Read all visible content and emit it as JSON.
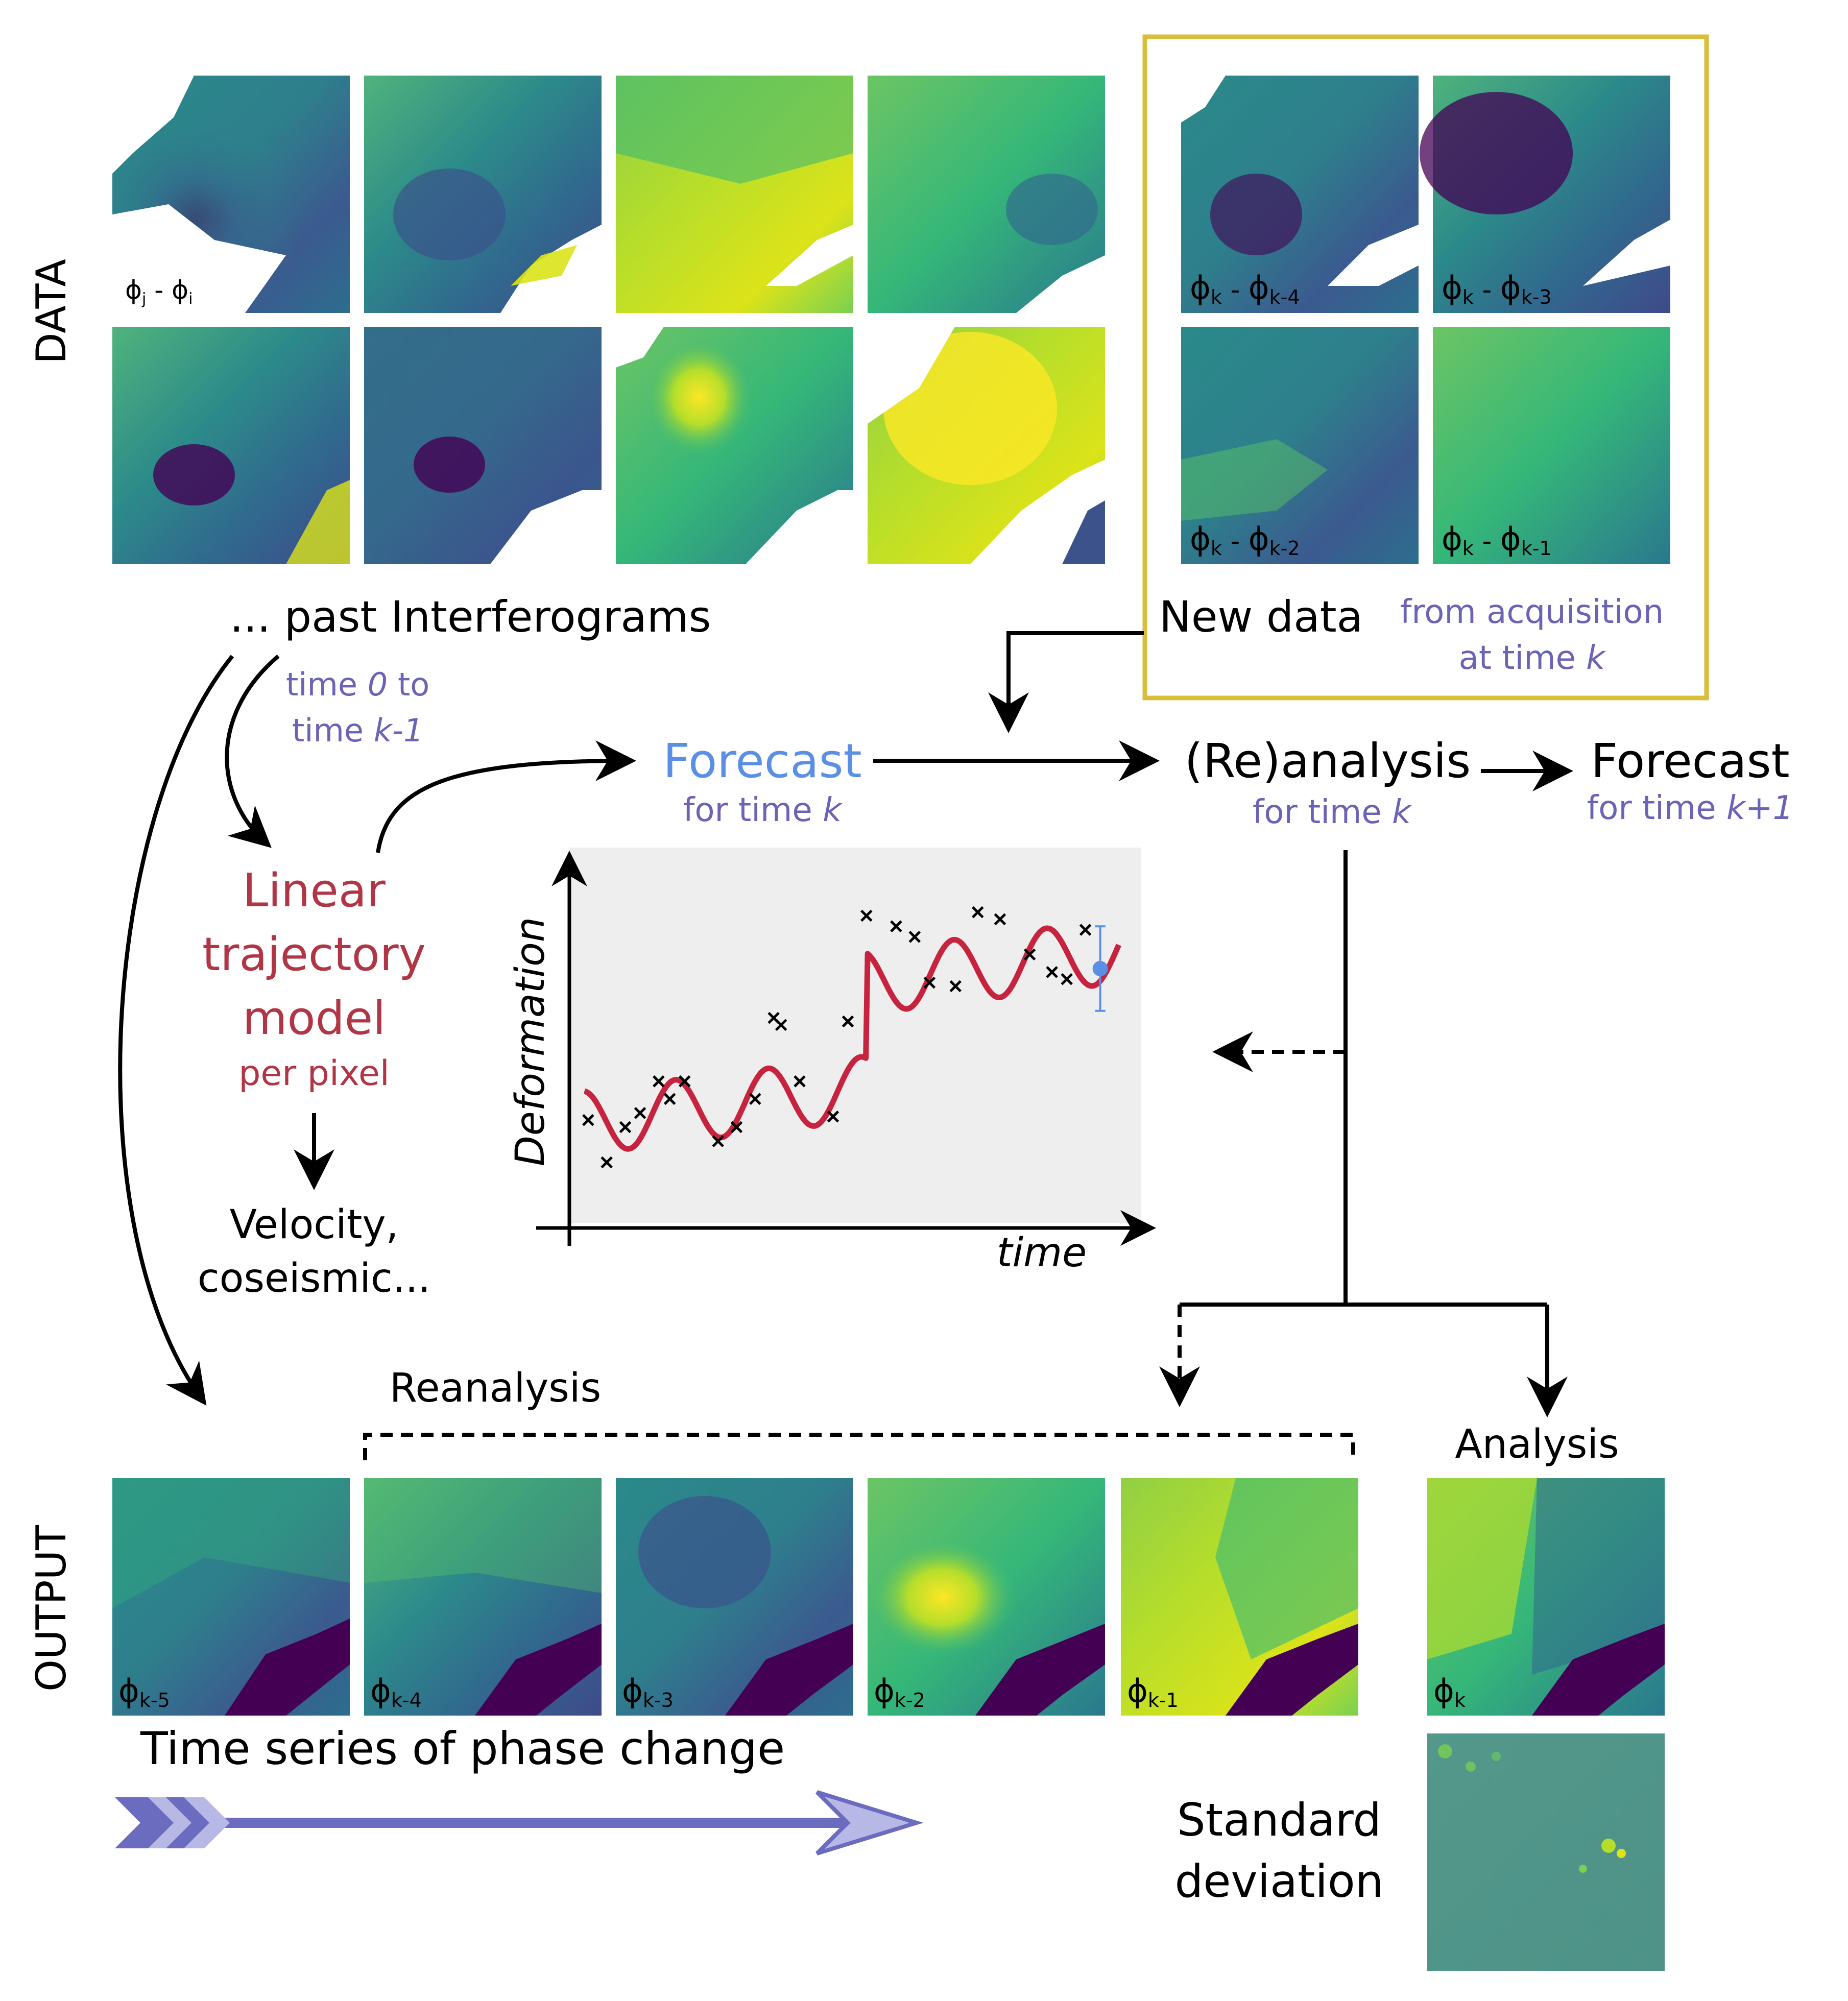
{
  "colors": {
    "forecast_blue": "#5b8fe6",
    "model_red": "#b03646",
    "annotation_purple": "#6b63b5",
    "box_gold": "#d9bd3c",
    "curve_red": "#c7233f",
    "plot_bg": "#eeeeee",
    "arrow_purple": "#6b6bc0",
    "arrow_purple_light": "#b8b8e6"
  },
  "labels": {
    "data": "DATA",
    "output": "OUTPUT",
    "past_interferograms": "... past Interferograms",
    "time_range_l1_a": "time ",
    "time_range_l1_b": "0",
    "time_range_l1_c": " to",
    "time_range_l2_a": "time ",
    "time_range_l2_b": "k-1",
    "new_data": "New data",
    "from_acq_l1": "from acquisition",
    "from_acq_l2_a": "at time ",
    "from_acq_l2_b": "k",
    "forecast": "Forecast",
    "forecast_sub_a": "for time ",
    "forecast_sub_b": "k",
    "reanalysis_node": "(Re)analysis",
    "reanalysis_sub_a": "for time ",
    "reanalysis_sub_b": "k",
    "forecast_next": "Forecast",
    "forecast_next_sub_a": "for time ",
    "forecast_next_sub_b": "k+1",
    "model_l1": "Linear",
    "model_l2": "trajectory",
    "model_l3": "model",
    "model_l4": "per pixel",
    "velocity_l1": "Velocity,",
    "velocity_l2": "coseismic...",
    "reanalysis": "Reanalysis",
    "analysis": "Analysis",
    "time_series": "Time series of phase change",
    "std_l1": "Standard",
    "std_l2": "deviation"
  },
  "tiles": {
    "ifg_generic": {
      "base": "ϕ",
      "sub1": "j",
      "mid": " - ",
      "base2": "ϕ",
      "sub2": "i"
    },
    "new_k4": {
      "base": "ϕ",
      "sub1": "k",
      "mid": " - ",
      "base2": "ϕ",
      "sub2": "k-4"
    },
    "new_k3": {
      "base": "ϕ",
      "sub1": "k",
      "mid": " - ",
      "base2": "ϕ",
      "sub2": "k-3"
    },
    "new_k2": {
      "base": "ϕ",
      "sub1": "k",
      "mid": " - ",
      "base2": "ϕ",
      "sub2": "k-2"
    },
    "new_k1": {
      "base": "ϕ",
      "sub1": "k",
      "mid": " - ",
      "base2": "ϕ",
      "sub2": "k-1"
    },
    "out_k5": {
      "base": "ϕ",
      "sub": "k-5"
    },
    "out_k4": {
      "base": "ϕ",
      "sub": "k-4"
    },
    "out_k3": {
      "base": "ϕ",
      "sub": "k-3"
    },
    "out_k2": {
      "base": "ϕ",
      "sub": "k-2"
    },
    "out_k1": {
      "base": "ϕ",
      "sub": "k-1"
    },
    "out_k": {
      "base": "ϕ",
      "sub": "k"
    }
  },
  "chart_data": {
    "type": "scatter",
    "xlabel": "time",
    "ylabel": "Deformation",
    "grid": false,
    "observations": {
      "x": [
        0.3,
        0.8,
        1.3,
        1.7,
        2.2,
        2.5,
        2.9,
        3.8,
        4.3,
        4.8,
        5.3,
        5.5,
        6.0,
        6.9,
        7.3,
        7.8,
        8.6,
        9.1,
        9.5,
        10.2,
        10.8,
        11.4,
        12.2,
        12.8,
        13.2,
        13.7
      ],
      "y": [
        2.7,
        1.5,
        2.5,
        2.9,
        3.8,
        3.3,
        3.8,
        2.1,
        2.5,
        3.3,
        5.6,
        5.4,
        3.8,
        2.8,
        5.5,
        8.5,
        8.2,
        7.9,
        6.6,
        6.5,
        8.6,
        8.4,
        7.4,
        6.9,
        6.7,
        8.1
      ],
      "marker": "x"
    },
    "model_curve": {
      "description_free": true,
      "x_start": 0.2,
      "x_end": 14.6,
      "step_at": 7.8,
      "step_size": 3.0,
      "trend_slope": 0.13,
      "amplitude": 0.9,
      "period": 2.5,
      "offset": 2.6
    },
    "forecast_point": {
      "x": 14.1,
      "y": 7.0,
      "err": 1.2
    },
    "xlim": [
      0,
      15
    ],
    "ylim": [
      0,
      10
    ]
  }
}
